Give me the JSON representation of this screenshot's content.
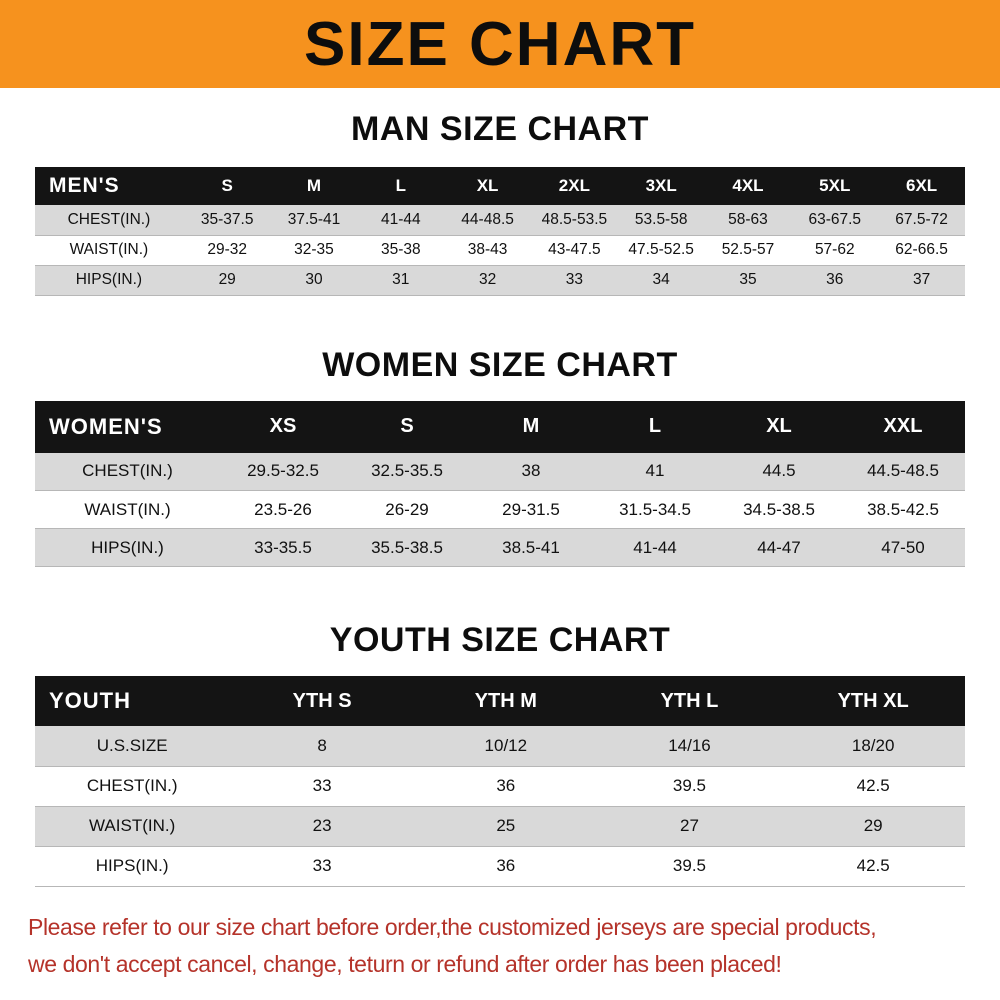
{
  "colors": {
    "banner-bg": "#f6921e",
    "header-bg": "#141414",
    "stripe-bg": "#d9d9d9",
    "disclaimer-color": "#b5332a"
  },
  "banner": {
    "title": "SIZE CHART"
  },
  "sections": [
    {
      "title": "MAN SIZE CHART",
      "header": [
        "MEN'S",
        "S",
        "M",
        "L",
        "XL",
        "2XL",
        "3XL",
        "4XL",
        "5XL",
        "6XL"
      ],
      "rows": [
        [
          "CHEST(IN.)",
          "35-37.5",
          "37.5-41",
          "41-44",
          "44-48.5",
          "48.5-53.5",
          "53.5-58",
          "58-63",
          "63-67.5",
          "67.5-72"
        ],
        [
          "WAIST(IN.)",
          "29-32",
          "32-35",
          "35-38",
          "38-43",
          "43-47.5",
          "47.5-52.5",
          "52.5-57",
          "57-62",
          "62-66.5"
        ],
        [
          "HIPS(IN.)",
          "29",
          "30",
          "31",
          "32",
          "33",
          "34",
          "35",
          "36",
          "37"
        ]
      ]
    },
    {
      "title": "WOMEN SIZE CHART",
      "header": [
        "WOMEN'S",
        "XS",
        "S",
        "M",
        "L",
        "XL",
        "XXL"
      ],
      "rows": [
        [
          "CHEST(IN.)",
          "29.5-32.5",
          "32.5-35.5",
          "38",
          "41",
          "44.5",
          "44.5-48.5"
        ],
        [
          "WAIST(IN.)",
          "23.5-26",
          "26-29",
          "29-31.5",
          "31.5-34.5",
          "34.5-38.5",
          "38.5-42.5"
        ],
        [
          "HIPS(IN.)",
          "33-35.5",
          "35.5-38.5",
          "38.5-41",
          "41-44",
          "44-47",
          "47-50"
        ]
      ]
    },
    {
      "title": "YOUTH SIZE CHART",
      "header": [
        "YOUTH",
        "YTH S",
        "YTH M",
        "YTH L",
        "YTH XL"
      ],
      "rows": [
        [
          "U.S.SIZE",
          "8",
          "10/12",
          "14/16",
          "18/20"
        ],
        [
          "CHEST(IN.)",
          "33",
          "36",
          "39.5",
          "42.5"
        ],
        [
          "WAIST(IN.)",
          "23",
          "25",
          "27",
          "29"
        ],
        [
          "HIPS(IN.)",
          "33",
          "36",
          "39.5",
          "42.5"
        ]
      ]
    }
  ],
  "disclaimer": {
    "line1": "Please refer to our size chart before order,the customized jerseys are special products,",
    "line2": "we don't accept cancel, change, teturn or refund after order has been placed!"
  }
}
